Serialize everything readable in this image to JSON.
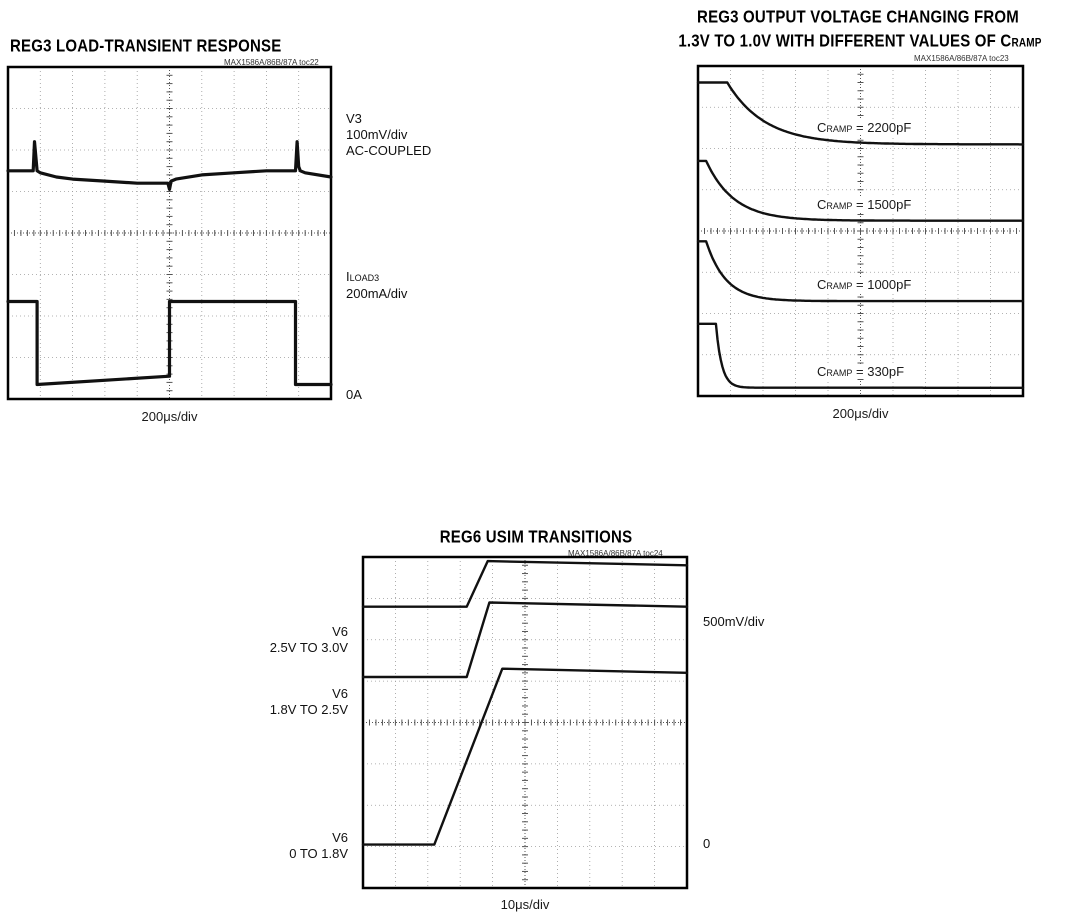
{
  "chart_data": [
    {
      "type": "line",
      "title": "REG3 LOAD-TRANSIENT RESPONSE",
      "toc": "MAX1586A/86B/87A toc22",
      "xlabel": "200μs/div",
      "grid": true,
      "x_divisions": 10,
      "y_divisions": 8,
      "channel_labels": [
        {
          "lines": [
            "V3",
            "100mV/div",
            "AC-COUPLED"
          ]
        },
        {
          "lines": [
            "I",
            "LOAD3",
            "200mA/div"
          ]
        },
        {
          "lines": [
            "0A"
          ]
        }
      ],
      "series": [
        {
          "x": [
            0,
            0.78,
            0.82,
            0.9,
            1.0,
            1.5,
            2.0,
            3.0,
            4.0,
            4.95,
            5.0,
            5.05,
            5.2,
            6.0,
            7.0,
            8.0,
            8.9,
            8.95,
            9.0,
            9.05,
            9.2,
            10.0
          ],
          "y": [
            5.5,
            5.5,
            6.2,
            5.5,
            5.45,
            5.35,
            5.3,
            5.25,
            5.2,
            5.2,
            5.05,
            5.25,
            5.3,
            5.4,
            5.45,
            5.5,
            5.5,
            6.2,
            5.6,
            5.5,
            5.45,
            5.35
          ]
        },
        {
          "x": [
            0,
            0.9,
            0.9,
            5.0,
            5.0,
            8.9,
            8.9,
            10.0
          ],
          "y": [
            2.35,
            2.35,
            0.35,
            0.55,
            2.35,
            2.35,
            0.35,
            0.35
          ]
        }
      ]
    },
    {
      "type": "line",
      "title": "REG3 OUTPUT VOLTAGE CHANGING FROM",
      "title_line2": "1.3V TO 1.0V WITH DIFFERENT VALUES OF C",
      "title_sub": "RAMP",
      "toc": "MAX1586A/86B/87A toc23",
      "xlabel": "200μs/div",
      "grid": true,
      "x_divisions": 10,
      "y_divisions": 8,
      "series": [
        {
          "name": "C",
          "sub": "RAMP",
          "value": " = 2200pF",
          "start": 0.9,
          "tau": 1.15,
          "high": 7.6,
          "low": 6.1
        },
        {
          "name": "C",
          "sub": "RAMP",
          "value": " = 1500pF",
          "start": 0.25,
          "tau": 0.85,
          "high": 5.7,
          "low": 4.25
        },
        {
          "name": "C",
          "sub": "RAMP",
          "value": " = 1000pF",
          "start": 0.25,
          "tau": 0.6,
          "high": 3.75,
          "low": 2.3
        },
        {
          "name": "C",
          "sub": "RAMP",
          "value": " = 330pF",
          "start": 0.55,
          "tau": 0.18,
          "high": 1.75,
          "low": 0.2
        }
      ]
    },
    {
      "type": "line",
      "title": "REG6 USIM TRANSITIONS",
      "toc": "MAX1586A/86B/87A toc24",
      "xlabel": "10μs/div",
      "grid": true,
      "x_divisions": 10,
      "y_divisions": 8,
      "scale_label": "500mV/div",
      "zero_label": "0",
      "series": [
        {
          "name": "V6",
          "range": "2.5V TO 3.0V",
          "x": [
            0,
            3.2,
            3.85,
            10.0
          ],
          "y": [
            6.8,
            6.8,
            7.9,
            7.8
          ]
        },
        {
          "name": "V6",
          "range": "1.8V TO 2.5V",
          "x": [
            0,
            3.2,
            3.9,
            10.0
          ],
          "y": [
            5.1,
            5.1,
            6.9,
            6.8
          ]
        },
        {
          "name": "V6",
          "range": "0 TO 1.8V",
          "x": [
            0,
            2.2,
            4.3,
            10.0
          ],
          "y": [
            1.05,
            1.05,
            5.3,
            5.2
          ]
        }
      ]
    }
  ]
}
